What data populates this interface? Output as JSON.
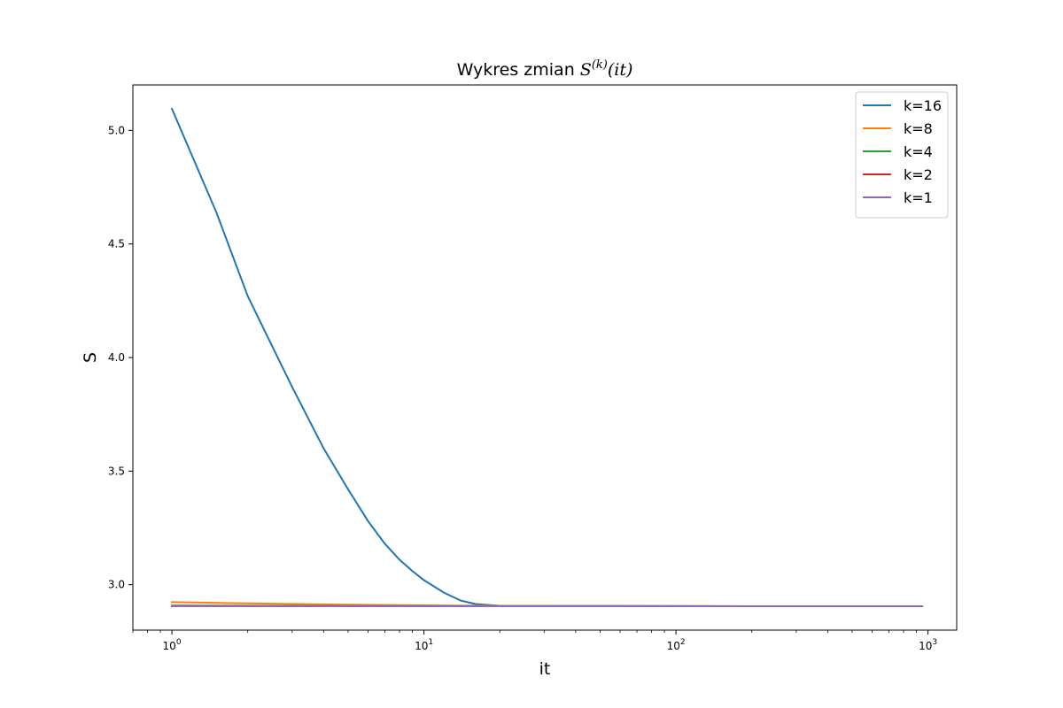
{
  "chart_data": {
    "type": "line",
    "title": {
      "prefix": "Wykres zmian ",
      "symbol": "S",
      "superscript": "(k)",
      "argument": "(it)"
    },
    "xlabel": "it",
    "ylabel": "S",
    "xscale": "log",
    "xlim": [
      0.7,
      1300
    ],
    "ylim": [
      2.8,
      5.2
    ],
    "xticks": [
      {
        "value": 1,
        "base": "10",
        "exp": "0"
      },
      {
        "value": 10,
        "base": "10",
        "exp": "1"
      },
      {
        "value": 100,
        "base": "10",
        "exp": "2"
      },
      {
        "value": 1000,
        "base": "10",
        "exp": "3"
      }
    ],
    "yticks": [
      {
        "value": 3.0,
        "label": "3.0"
      },
      {
        "value": 3.5,
        "label": "3.5"
      },
      {
        "value": 4.0,
        "label": "4.0"
      },
      {
        "value": 4.5,
        "label": "4.5"
      },
      {
        "value": 5.0,
        "label": "5.0"
      }
    ],
    "grid": false,
    "legend_position": "top-right",
    "series": [
      {
        "name": "k=16",
        "color": "#1f77b4",
        "points": [
          [
            1,
            5.095
          ],
          [
            1.5,
            4.64
          ],
          [
            2,
            4.27
          ],
          [
            3,
            3.87
          ],
          [
            4,
            3.6
          ],
          [
            5,
            3.42
          ],
          [
            6,
            3.28
          ],
          [
            7,
            3.18
          ],
          [
            8,
            3.11
          ],
          [
            9,
            3.06
          ],
          [
            10,
            3.02
          ],
          [
            12,
            2.965
          ],
          [
            14,
            2.93
          ],
          [
            16,
            2.915
          ],
          [
            20,
            2.907
          ],
          [
            30,
            2.906
          ],
          [
            50,
            2.906
          ],
          [
            100,
            2.906
          ],
          [
            200,
            2.905
          ]
        ]
      },
      {
        "name": "k=8",
        "color": "#ff7f0e",
        "points": [
          [
            1,
            2.923
          ],
          [
            2,
            2.918
          ],
          [
            5,
            2.912
          ],
          [
            10,
            2.909
          ],
          [
            20,
            2.907
          ],
          [
            50,
            2.906
          ],
          [
            100,
            2.906
          ],
          [
            170,
            2.905
          ]
        ]
      },
      {
        "name": "k=4",
        "color": "#2ca02c",
        "points": [
          [
            1,
            2.908
          ],
          [
            10,
            2.906
          ],
          [
            100,
            2.905
          ],
          [
            240,
            2.905
          ]
        ]
      },
      {
        "name": "k=2",
        "color": "#d62728",
        "points": [
          [
            1,
            2.906
          ],
          [
            10,
            2.905
          ],
          [
            120,
            2.905
          ]
        ]
      },
      {
        "name": "k=1",
        "color": "#9467bd",
        "points": [
          [
            1,
            2.905
          ],
          [
            10,
            2.905
          ],
          [
            100,
            2.905
          ],
          [
            950,
            2.905
          ]
        ]
      }
    ]
  }
}
